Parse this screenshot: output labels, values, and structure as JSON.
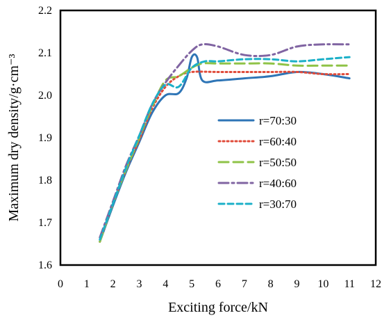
{
  "chart_data": {
    "type": "line",
    "xlabel": "Exciting force/kN",
    "ylabel": "Maximum dry density/g·cm⁻³",
    "xlim": [
      0,
      12
    ],
    "ylim": [
      1.6,
      2.2
    ],
    "xticks": [
      "0",
      "1",
      "2",
      "3",
      "4",
      "5",
      "6",
      "7",
      "8",
      "9",
      "10",
      "11",
      "12"
    ],
    "yticks": [
      "1.6",
      "1.7",
      "1.8",
      "1.9",
      "2.0",
      "2.1",
      "2.2"
    ],
    "grid": false,
    "legend_position": "right-center",
    "series": [
      {
        "name": "r=70:30",
        "color": "#2e75b6",
        "dash": "solid",
        "x": [
          1.5,
          2.0,
          2.5,
          3.0,
          3.5,
          4.0,
          4.5,
          4.8,
          5.0,
          5.2,
          5.4,
          6.0,
          7.0,
          8.0,
          9.0,
          10.0,
          11.0
        ],
        "y": [
          1.655,
          1.74,
          1.82,
          1.89,
          1.96,
          2.0,
          2.005,
          2.04,
          2.09,
          2.09,
          2.035,
          2.035,
          2.04,
          2.045,
          2.055,
          2.05,
          2.04
        ]
      },
      {
        "name": "r=60:40",
        "color": "#e04b3a",
        "dash": "dot",
        "x": [
          1.5,
          2.0,
          2.5,
          3.0,
          3.5,
          4.0,
          4.5,
          5.0,
          6.0,
          7.0,
          8.0,
          9.0,
          10.0,
          11.0
        ],
        "y": [
          1.655,
          1.745,
          1.825,
          1.895,
          1.97,
          2.02,
          2.045,
          2.055,
          2.055,
          2.055,
          2.055,
          2.055,
          2.05,
          2.05
        ]
      },
      {
        "name": "r=50:50",
        "color": "#8fc347",
        "dash": "longdash",
        "x": [
          1.5,
          2.0,
          2.5,
          3.0,
          3.5,
          4.0,
          4.5,
          5.0,
          5.4,
          6.0,
          7.0,
          8.0,
          9.0,
          10.0,
          11.0
        ],
        "y": [
          1.655,
          1.745,
          1.825,
          1.9,
          1.975,
          2.035,
          2.045,
          2.065,
          2.075,
          2.075,
          2.075,
          2.075,
          2.07,
          2.07,
          2.07
        ]
      },
      {
        "name": "r=40:60",
        "color": "#8064a2",
        "dash": "dashdot",
        "x": [
          1.5,
          2.0,
          2.5,
          3.0,
          3.5,
          4.0,
          4.5,
          5.0,
          5.4,
          6.0,
          7.0,
          8.0,
          9.0,
          10.0,
          11.0
        ],
        "y": [
          1.665,
          1.75,
          1.835,
          1.905,
          1.98,
          2.03,
          2.07,
          2.105,
          2.12,
          2.115,
          2.095,
          2.095,
          2.115,
          2.12,
          2.12
        ]
      },
      {
        "name": "r=30:70",
        "color": "#1cb0c8",
        "dash": "dash",
        "x": [
          1.5,
          2.0,
          2.5,
          3.0,
          3.5,
          4.0,
          4.5,
          5.0,
          5.5,
          6.0,
          7.0,
          8.0,
          9.0,
          10.0,
          11.0
        ],
        "y": [
          1.66,
          1.745,
          1.83,
          1.905,
          1.98,
          2.025,
          2.02,
          2.065,
          2.08,
          2.08,
          2.085,
          2.085,
          2.08,
          2.085,
          2.09
        ]
      }
    ]
  }
}
